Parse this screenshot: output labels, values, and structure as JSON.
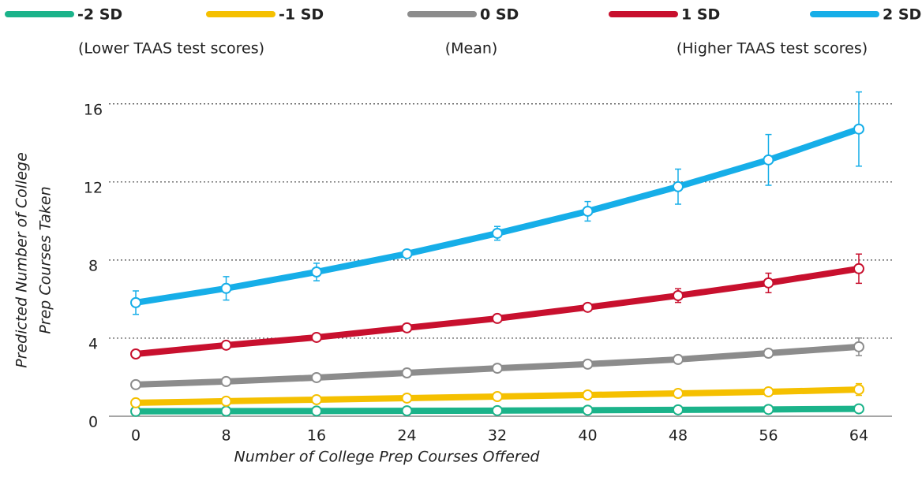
{
  "chart_data": {
    "type": "line",
    "ylabel": [
      "Predicted Number of College",
      "Prep Courses Taken"
    ],
    "xlabel": "Number of College Prep Courses Offered",
    "annotations": [
      "(Lower TAAS test scores)",
      "(Mean)",
      "(Higher TAAS test scores)"
    ],
    "x": [
      0,
      8,
      16,
      24,
      32,
      40,
      48,
      56,
      64
    ],
    "xlim": [
      -2,
      66
    ],
    "xticks": [
      0,
      8,
      16,
      24,
      32,
      40,
      48,
      56,
      64
    ],
    "ylim": [
      0,
      17
    ],
    "yticks": [
      0,
      4,
      8,
      12,
      16
    ],
    "grid": true,
    "series": [
      {
        "name": "-2 SD",
        "color": "#1bb38a",
        "values": [
          0.25,
          0.26,
          0.27,
          0.28,
          0.29,
          0.31,
          0.33,
          0.35,
          0.38
        ],
        "errors": [
          0.05,
          0.05,
          0.05,
          0.05,
          0.05,
          0.05,
          0.05,
          0.05,
          0.05
        ]
      },
      {
        "name": "-1 SD",
        "color": "#f5c000",
        "values": [
          0.69,
          0.77,
          0.85,
          0.93,
          1.01,
          1.09,
          1.17,
          1.25,
          1.37
        ],
        "errors": [
          0.1,
          0.1,
          0.1,
          0.1,
          0.1,
          0.1,
          0.1,
          0.15,
          0.3
        ]
      },
      {
        "name": "0 SD",
        "color": "#8c8c8c",
        "values": [
          1.62,
          1.78,
          1.98,
          2.22,
          2.46,
          2.67,
          2.91,
          3.23,
          3.56
        ],
        "errors": [
          0.1,
          0.1,
          0.1,
          0.1,
          0.1,
          0.1,
          0.1,
          0.2,
          0.45
        ]
      },
      {
        "name": "1 SD",
        "color": "#c8102e",
        "values": [
          3.19,
          3.64,
          4.04,
          4.53,
          5.01,
          5.58,
          6.18,
          6.83,
          7.56
        ],
        "errors": [
          0.1,
          0.1,
          0.1,
          0.1,
          0.1,
          0.15,
          0.35,
          0.5,
          0.75
        ]
      },
      {
        "name": "2 SD",
        "color": "#16aee8",
        "values": [
          5.82,
          6.55,
          7.39,
          8.32,
          9.37,
          10.5,
          11.76,
          13.13,
          14.71
        ],
        "errors": [
          0.6,
          0.6,
          0.45,
          0.1,
          0.35,
          0.5,
          0.9,
          1.3,
          1.9
        ]
      }
    ]
  }
}
